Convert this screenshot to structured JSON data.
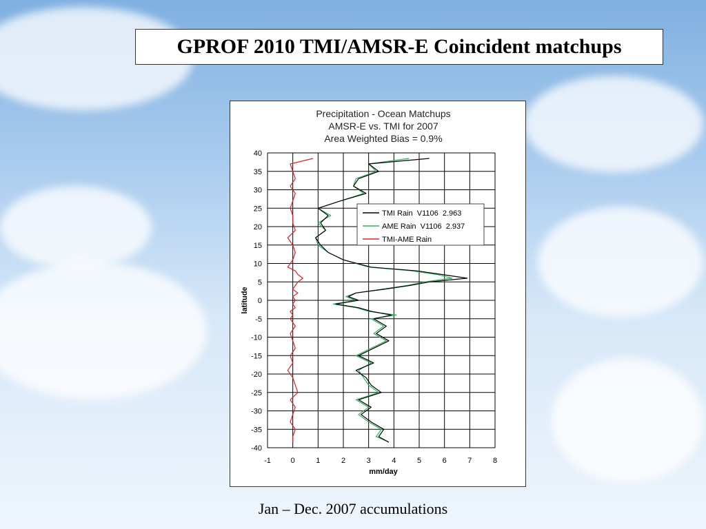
{
  "slide": {
    "title": "GPROF 2010 TMI/AMSR-E Coincident matchups",
    "caption": "Jan – Dec. 2007 accumulations"
  },
  "chart_data": {
    "type": "line",
    "title_lines": [
      "Precipitation - Ocean Matchups",
      "AMSR-E vs. TMI for 2007",
      "Area Weighted Bias = 0.9%"
    ],
    "xlabel": "mm/day",
    "ylabel": "latitude",
    "xlim": [
      -1,
      8
    ],
    "ylim": [
      -40,
      40
    ],
    "xticks": [
      -1,
      0,
      1,
      2,
      3,
      4,
      5,
      6,
      7,
      8
    ],
    "yticks": [
      40,
      35,
      30,
      25,
      20,
      15,
      10,
      5,
      0,
      -5,
      -10,
      -15,
      -20,
      -25,
      -30,
      -35,
      -40
    ],
    "grid": "horizontal and vertical",
    "legend_position": "upper-right inside plot",
    "latitudes": [
      38.5,
      37,
      35,
      33,
      31,
      29,
      27,
      25,
      23,
      21,
      19,
      17,
      15,
      13,
      11,
      9,
      8,
      7,
      6,
      5,
      4,
      3,
      2,
      1,
      0,
      -1,
      -2,
      -3,
      -4,
      -5,
      -7,
      -9,
      -11,
      -13,
      -15,
      -17,
      -19,
      -21,
      -23,
      -25,
      -27,
      -29,
      -31,
      -33,
      -35,
      -37,
      -38.5
    ],
    "series": [
      {
        "name": "TMI Rain  V1106  2.963",
        "color": "#000000",
        "x": [
          5.4,
          3.0,
          3.4,
          2.6,
          2.4,
          2.9,
          1.9,
          1.0,
          1.4,
          1.1,
          1.3,
          0.9,
          1.1,
          1.4,
          2.0,
          3.1,
          4.9,
          5.9,
          6.9,
          5.4,
          4.6,
          3.6,
          2.5,
          2.2,
          2.6,
          1.7,
          2.6,
          3.1,
          3.9,
          3.2,
          3.7,
          3.3,
          3.8,
          3.2,
          2.6,
          3.2,
          2.5,
          2.9,
          3.1,
          3.5,
          2.6,
          3.1,
          2.7,
          3.1,
          3.6,
          3.4,
          3.8
        ]
      },
      {
        "name": "AME Rain  V1106  2.937",
        "color": "#2eb05c",
        "x": [
          4.6,
          3.0,
          3.3,
          2.5,
          2.4,
          2.8,
          1.9,
          1.0,
          1.5,
          1.0,
          1.3,
          0.9,
          1.0,
          1.4,
          2.0,
          3.0,
          4.7,
          5.7,
          6.3,
          5.2,
          4.5,
          3.5,
          2.5,
          2.1,
          2.5,
          1.6,
          2.5,
          3.0,
          4.1,
          3.1,
          3.6,
          3.2,
          3.7,
          3.1,
          2.5,
          3.1,
          2.6,
          2.8,
          3.0,
          3.4,
          2.5,
          3.0,
          2.6,
          3.0,
          3.5,
          3.3,
          3.8
        ]
      },
      {
        "name": "TMI-AME Rain",
        "color": "#e02020",
        "x": [
          0.8,
          -0.1,
          0.0,
          0.1,
          -0.1,
          0.1,
          0.0,
          -0.1,
          0.0,
          0.0,
          0.1,
          -0.2,
          0.0,
          0.1,
          0.0,
          -0.2,
          0.1,
          0.2,
          0.4,
          0.2,
          0.1,
          0.0,
          0.2,
          0.0,
          0.1,
          0.0,
          0.1,
          -0.1,
          0.0,
          -0.1,
          0.1,
          -0.1,
          0.0,
          0.1,
          -0.1,
          0.0,
          -0.2,
          0.0,
          0.1,
          0.2,
          -0.1,
          0.1,
          0.0,
          -0.1,
          0.1,
          0.0,
          0.0
        ]
      }
    ]
  }
}
